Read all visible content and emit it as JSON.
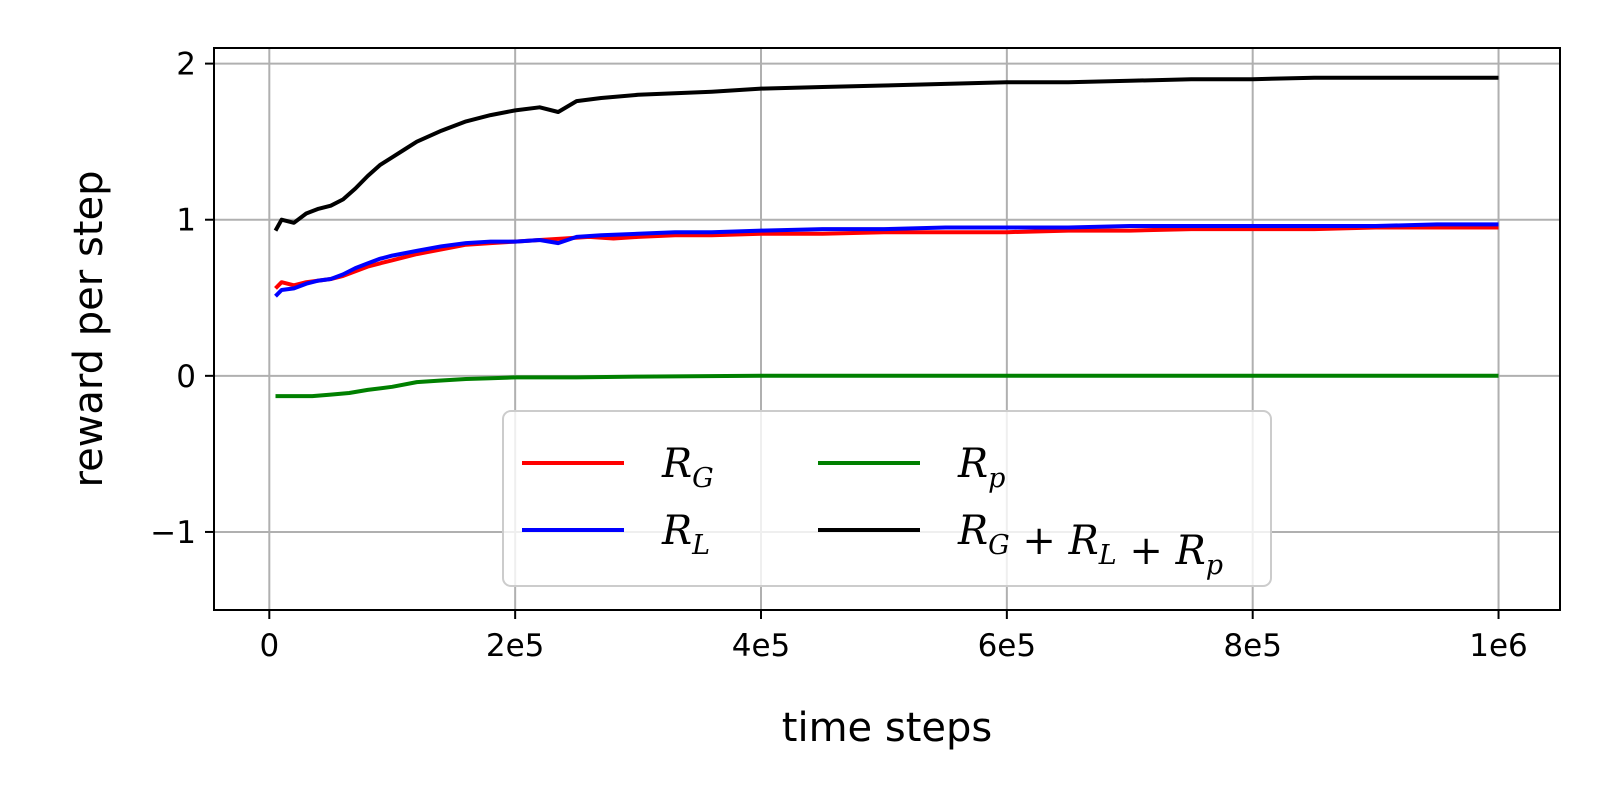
{
  "chart_data": {
    "type": "line",
    "xlabel": "time steps",
    "ylabel": "reward per step",
    "xlim": [
      -45000,
      1050000
    ],
    "ylim": [
      -1.5,
      2.1
    ],
    "xticks": [
      0,
      200000,
      400000,
      600000,
      800000,
      1000000
    ],
    "xtick_labels": [
      "0",
      "2e5",
      "4e5",
      "6e5",
      "8e5",
      "1e6"
    ],
    "yticks": [
      -1,
      0,
      1,
      2
    ],
    "ytick_labels": [
      "−1",
      "0",
      "1",
      "2"
    ],
    "grid": true,
    "legend_position": "lower center",
    "legend_columns": 2,
    "series": [
      {
        "name": "R_G",
        "label_parts": [
          [
            "R",
            "G"
          ]
        ],
        "color": "#ff0000",
        "points": [
          [
            5000,
            0.56
          ],
          [
            10000,
            0.6
          ],
          [
            20000,
            0.58
          ],
          [
            30000,
            0.6
          ],
          [
            40000,
            0.61
          ],
          [
            50000,
            0.62
          ],
          [
            60000,
            0.64
          ],
          [
            70000,
            0.67
          ],
          [
            80000,
            0.7
          ],
          [
            90000,
            0.72
          ],
          [
            100000,
            0.74
          ],
          [
            120000,
            0.78
          ],
          [
            140000,
            0.81
          ],
          [
            160000,
            0.84
          ],
          [
            180000,
            0.85
          ],
          [
            200000,
            0.86
          ],
          [
            220000,
            0.87
          ],
          [
            240000,
            0.88
          ],
          [
            260000,
            0.89
          ],
          [
            280000,
            0.88
          ],
          [
            300000,
            0.89
          ],
          [
            330000,
            0.9
          ],
          [
            360000,
            0.9
          ],
          [
            400000,
            0.91
          ],
          [
            450000,
            0.91
          ],
          [
            500000,
            0.92
          ],
          [
            550000,
            0.92
          ],
          [
            600000,
            0.92
          ],
          [
            650000,
            0.93
          ],
          [
            700000,
            0.93
          ],
          [
            750000,
            0.94
          ],
          [
            800000,
            0.94
          ],
          [
            850000,
            0.94
          ],
          [
            900000,
            0.95
          ],
          [
            950000,
            0.95
          ],
          [
            1000000,
            0.95
          ]
        ]
      },
      {
        "name": "R_L",
        "label_parts": [
          [
            "R",
            "L"
          ]
        ],
        "color": "#0000ff",
        "points": [
          [
            5000,
            0.51
          ],
          [
            10000,
            0.55
          ],
          [
            20000,
            0.56
          ],
          [
            30000,
            0.59
          ],
          [
            40000,
            0.61
          ],
          [
            50000,
            0.62
          ],
          [
            60000,
            0.65
          ],
          [
            70000,
            0.69
          ],
          [
            80000,
            0.72
          ],
          [
            90000,
            0.75
          ],
          [
            100000,
            0.77
          ],
          [
            120000,
            0.8
          ],
          [
            140000,
            0.83
          ],
          [
            160000,
            0.85
          ],
          [
            180000,
            0.86
          ],
          [
            200000,
            0.86
          ],
          [
            220000,
            0.87
          ],
          [
            235000,
            0.85
          ],
          [
            250000,
            0.89
          ],
          [
            270000,
            0.9
          ],
          [
            300000,
            0.91
          ],
          [
            330000,
            0.92
          ],
          [
            360000,
            0.92
          ],
          [
            400000,
            0.93
          ],
          [
            450000,
            0.94
          ],
          [
            500000,
            0.94
          ],
          [
            550000,
            0.95
          ],
          [
            600000,
            0.95
          ],
          [
            650000,
            0.95
          ],
          [
            700000,
            0.96
          ],
          [
            750000,
            0.96
          ],
          [
            800000,
            0.96
          ],
          [
            850000,
            0.96
          ],
          [
            900000,
            0.96
          ],
          [
            950000,
            0.97
          ],
          [
            1000000,
            0.97
          ]
        ]
      },
      {
        "name": "R_p",
        "label_parts": [
          [
            "R",
            "p"
          ]
        ],
        "color": "#008000",
        "points": [
          [
            5000,
            -0.13
          ],
          [
            20000,
            -0.13
          ],
          [
            35000,
            -0.13
          ],
          [
            50000,
            -0.12
          ],
          [
            65000,
            -0.11
          ],
          [
            80000,
            -0.09
          ],
          [
            100000,
            -0.07
          ],
          [
            120000,
            -0.04
          ],
          [
            140000,
            -0.03
          ],
          [
            160000,
            -0.02
          ],
          [
            180000,
            -0.015
          ],
          [
            200000,
            -0.01
          ],
          [
            250000,
            -0.01
          ],
          [
            300000,
            -0.005
          ],
          [
            400000,
            0.0
          ],
          [
            500000,
            0.0
          ],
          [
            600000,
            0.0
          ],
          [
            700000,
            0.0
          ],
          [
            800000,
            0.0
          ],
          [
            900000,
            0.0
          ],
          [
            1000000,
            0.0
          ]
        ]
      },
      {
        "name": "R_G + R_L + R_p",
        "label_parts": [
          [
            "R",
            "G"
          ],
          [
            "+",
            ""
          ],
          [
            "R",
            "L"
          ],
          [
            "+",
            ""
          ],
          [
            "R",
            "p"
          ]
        ],
        "color": "#000000",
        "points": [
          [
            5000,
            0.93
          ],
          [
            10000,
            1.0
          ],
          [
            20000,
            0.98
          ],
          [
            30000,
            1.04
          ],
          [
            40000,
            1.07
          ],
          [
            50000,
            1.09
          ],
          [
            60000,
            1.13
          ],
          [
            70000,
            1.2
          ],
          [
            80000,
            1.28
          ],
          [
            90000,
            1.35
          ],
          [
            100000,
            1.4
          ],
          [
            110000,
            1.45
          ],
          [
            120000,
            1.5
          ],
          [
            140000,
            1.57
          ],
          [
            160000,
            1.63
          ],
          [
            180000,
            1.67
          ],
          [
            200000,
            1.7
          ],
          [
            220000,
            1.72
          ],
          [
            235000,
            1.69
          ],
          [
            250000,
            1.76
          ],
          [
            270000,
            1.78
          ],
          [
            300000,
            1.8
          ],
          [
            330000,
            1.81
          ],
          [
            360000,
            1.82
          ],
          [
            400000,
            1.84
          ],
          [
            450000,
            1.85
          ],
          [
            500000,
            1.86
          ],
          [
            550000,
            1.87
          ],
          [
            600000,
            1.88
          ],
          [
            650000,
            1.88
          ],
          [
            700000,
            1.89
          ],
          [
            750000,
            1.9
          ],
          [
            800000,
            1.9
          ],
          [
            850000,
            1.91
          ],
          [
            900000,
            1.91
          ],
          [
            950000,
            1.91
          ],
          [
            1000000,
            1.91
          ]
        ]
      }
    ]
  }
}
